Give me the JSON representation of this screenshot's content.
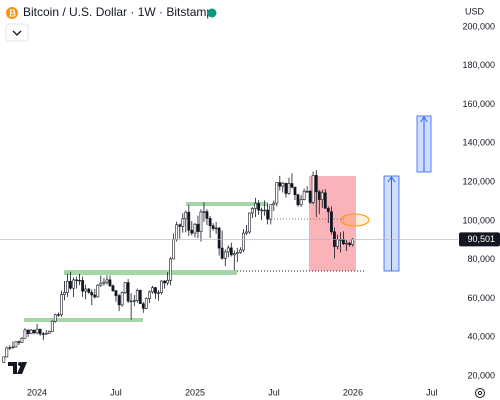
{
  "chart_data": {
    "type": "candlestick",
    "title": "Bitcoin / U.S. Dollar · 1W · Bitstamp",
    "currency": "USD",
    "x": [
      2023.79,
      2023.809,
      2023.828,
      2023.848,
      2023.867,
      2023.886,
      2023.905,
      2023.924,
      2023.944,
      2023.963,
      2023.982,
      2024.001,
      2024.02,
      2024.04,
      2024.059,
      2024.078,
      2024.097,
      2024.116,
      2024.136,
      2024.155,
      2024.174,
      2024.193,
      2024.212,
      2024.232,
      2024.251,
      2024.27,
      2024.289,
      2024.308,
      2024.328,
      2024.347,
      2024.366,
      2024.385,
      2024.404,
      2024.424,
      2024.443,
      2024.462,
      2024.481,
      2024.5,
      2024.52,
      2024.539,
      2024.558,
      2024.577,
      2024.596,
      2024.616,
      2024.635,
      2024.654,
      2024.673,
      2024.692,
      2024.712,
      2024.731,
      2024.75,
      2024.769,
      2024.788,
      2024.808,
      2024.827,
      2024.846,
      2024.865,
      2024.884,
      2024.904,
      2024.923,
      2024.942,
      2024.961,
      2024.98,
      2025.0,
      2025.019,
      2025.038,
      2025.057,
      2025.076,
      2025.096,
      2025.115,
      2025.134,
      2025.153,
      2025.172,
      2025.192,
      2025.211,
      2025.23,
      2025.249,
      2025.268,
      2025.288,
      2025.307,
      2025.326,
      2025.345,
      2025.364,
      2025.384,
      2025.403,
      2025.422,
      2025.441,
      2025.46,
      2025.48,
      2025.499,
      2025.518,
      2025.537,
      2025.556,
      2025.576,
      2025.595,
      2025.614,
      2025.633,
      2025.652,
      2025.672,
      2025.691,
      2025.71,
      2025.729,
      2025.748,
      2025.768,
      2025.787,
      2025.806,
      2025.825,
      2025.844,
      2025.864,
      2025.883,
      2025.902,
      2025.921,
      2025.94,
      2025.96,
      2025.979,
      2025.998
    ],
    "open": [
      27100,
      29900,
      34500,
      34700,
      35000,
      37700,
      37400,
      39500,
      43800,
      41900,
      43700,
      42300,
      44200,
      41800,
      41600,
      42000,
      43000,
      48300,
      51700,
      51600,
      62000,
      63100,
      68900,
      65300,
      69600,
      69400,
      69300,
      63800,
      64900,
      63100,
      61800,
      60800,
      66900,
      67900,
      68400,
      69600,
      66500,
      64000,
      61500,
      56700,
      63000,
      68200,
      58700,
      58700,
      58900,
      64200,
      57300,
      54900,
      60000,
      63400,
      65600,
      62800,
      63000,
      69000,
      68000,
      69400,
      80400,
      90500,
      98000,
      97200,
      101100,
      104500,
      95200,
      93700,
      98300,
      94500,
      104600,
      104800,
      101300,
      97500,
      96100,
      96300,
      86000,
      80700,
      84000,
      86100,
      82500,
      83100,
      83700,
      85000,
      93700,
      94300,
      104100,
      106400,
      109000,
      105600,
      105600,
      105600,
      100900,
      108400,
      109200,
      119800,
      117900,
      119400,
      114200,
      119300,
      117400,
      113500,
      108300,
      111100,
      115300,
      115300,
      109600,
      123500,
      115000,
      111000,
      114500,
      106500,
      104700,
      94400,
      86800,
      90400,
      90400,
      88200,
      88500,
      87800
    ],
    "high": [
      30200,
      35200,
      35900,
      37900,
      38000,
      38400,
      40200,
      44700,
      43400,
      44300,
      43900,
      47000,
      43200,
      42800,
      43800,
      43500,
      48600,
      52100,
      52800,
      64000,
      69000,
      72800,
      73800,
      71000,
      71300,
      72700,
      71300,
      67200,
      65400,
      64700,
      65000,
      67400,
      71900,
      70600,
      71900,
      71900,
      67300,
      64400,
      62400,
      63600,
      68400,
      70000,
      62700,
      61800,
      65000,
      64600,
      58100,
      60600,
      64100,
      66500,
      66000,
      64400,
      69400,
      69500,
      73600,
      81500,
      93400,
      99600,
      98700,
      104000,
      105300,
      108300,
      99900,
      98900,
      102700,
      106000,
      109600,
      106000,
      102500,
      98800,
      99500,
      96900,
      95000,
      85300,
      87400,
      88800,
      84700,
      86100,
      86400,
      95700,
      97900,
      104300,
      107100,
      111900,
      110700,
      106800,
      110600,
      109000,
      108500,
      110500,
      119900,
      123200,
      120200,
      119800,
      122300,
      124500,
      117500,
      114000,
      113300,
      116700,
      117900,
      115900,
      125500,
      126200,
      116000,
      116100,
      116400,
      107500,
      107500,
      96600,
      93000,
      94100,
      94600,
      90200,
      89300,
      91200
    ],
    "low": [
      26800,
      29600,
      33400,
      34100,
      34800,
      36000,
      37200,
      39300,
      40200,
      41600,
      41500,
      41500,
      40700,
      38500,
      41400,
      42000,
      42800,
      47600,
      50600,
      50500,
      59000,
      60800,
      64600,
      60800,
      65100,
      66900,
      60800,
      59600,
      62500,
      56500,
      60000,
      60600,
      65900,
      66600,
      67100,
      66000,
      63400,
      58400,
      53500,
      55700,
      62300,
      57700,
      49100,
      56100,
      57800,
      57200,
      52600,
      54500,
      57600,
      62500,
      59800,
      58900,
      62000,
      65100,
      66800,
      66800,
      80200,
      89400,
      90800,
      94000,
      94100,
      92200,
      92500,
      91500,
      91200,
      89300,
      99600,
      97800,
      91200,
      94900,
      93300,
      82200,
      80000,
      76600,
      81300,
      81600,
      74500,
      78800,
      83100,
      83900,
      92800,
      93400,
      101500,
      102000,
      103100,
      100400,
      102700,
      98200,
      98200,
      105100,
      107500,
      115700,
      114700,
      112000,
      113400,
      116800,
      110700,
      107300,
      107300,
      110600,
      114400,
      108700,
      108600,
      102000,
      103500,
      106700,
      106300,
      98900,
      93000,
      80600,
      85300,
      83800,
      87600,
      84500,
      86600,
      86800
    ],
    "close": [
      29900,
      34500,
      34700,
      35000,
      37700,
      37400,
      39500,
      43800,
      41900,
      43700,
      42300,
      44200,
      41800,
      41600,
      42000,
      43000,
      48300,
      51700,
      51600,
      62000,
      63100,
      68900,
      65300,
      69600,
      69400,
      69300,
      63800,
      64900,
      63100,
      61800,
      60800,
      66900,
      67900,
      68400,
      69600,
      66500,
      64000,
      61500,
      56700,
      63000,
      68200,
      58700,
      58700,
      58900,
      64200,
      57300,
      54900,
      60000,
      63400,
      65600,
      62800,
      63000,
      69000,
      68000,
      69400,
      80400,
      90500,
      98000,
      97200,
      101100,
      104500,
      95200,
      93700,
      98300,
      94500,
      104600,
      104800,
      101300,
      97500,
      96100,
      96300,
      86000,
      80700,
      84000,
      86100,
      82500,
      83100,
      83700,
      85000,
      93700,
      94300,
      104100,
      106400,
      109000,
      105600,
      105600,
      105600,
      100900,
      108400,
      109200,
      119800,
      117900,
      119400,
      114200,
      119300,
      117400,
      113500,
      108300,
      111100,
      115300,
      115300,
      109600,
      123500,
      115000,
      111000,
      114500,
      106500,
      104700,
      94400,
      86800,
      90400,
      90400,
      88200,
      88500,
      87800,
      90501
    ],
    "up_color": "#ffffff",
    "down_color": "#131722",
    "price_marker": {
      "value": 90501,
      "label": "90,501"
    },
    "xlim": [
      2023.766,
      2026.665
    ],
    "ylim": [
      15400,
      213900
    ],
    "xticks": [
      2024,
      {
        "value": 2024.5,
        "label": "Jul"
      },
      2025,
      {
        "value": 2025.5,
        "label": "Jul"
      },
      2026,
      {
        "value": 2026.5,
        "label": "Jul"
      }
    ],
    "yticks": [
      {
        "value": 20000,
        "label": "20,000"
      },
      {
        "value": 40000,
        "label": "40,000"
      },
      {
        "value": 60000,
        "label": "60,000"
      },
      {
        "value": 80000,
        "label": "80,000"
      },
      {
        "value": 100000,
        "label": "100,000"
      },
      {
        "value": 120000,
        "label": "120,000"
      },
      {
        "value": 140000,
        "label": "140,000"
      },
      {
        "value": 160000,
        "label": "160,000"
      },
      {
        "value": 180000,
        "label": "180,000"
      },
      {
        "value": 200000,
        "label": "200,000"
      }
    ],
    "grid": false
  }
}
